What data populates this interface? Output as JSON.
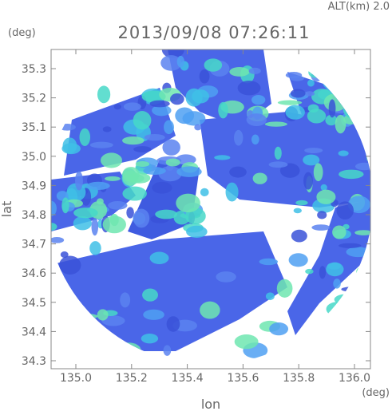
{
  "header": {
    "altitude": "ALT(km) 2.0",
    "unit_left": "(deg)",
    "timestamp": "2013/09/08 07:26:11"
  },
  "axes": {
    "y_label": "lat",
    "x_label": "lon",
    "x_unit": "(deg)",
    "yticks": [
      "35.3",
      "35.2",
      "35.1",
      "35.0",
      "34.9",
      "34.8",
      "34.7",
      "34.6",
      "34.5",
      "34.4",
      "34.3"
    ],
    "xticks": [
      "135.0",
      "135.2",
      "135.4",
      "135.6",
      "135.8",
      "136.0"
    ]
  }
}
